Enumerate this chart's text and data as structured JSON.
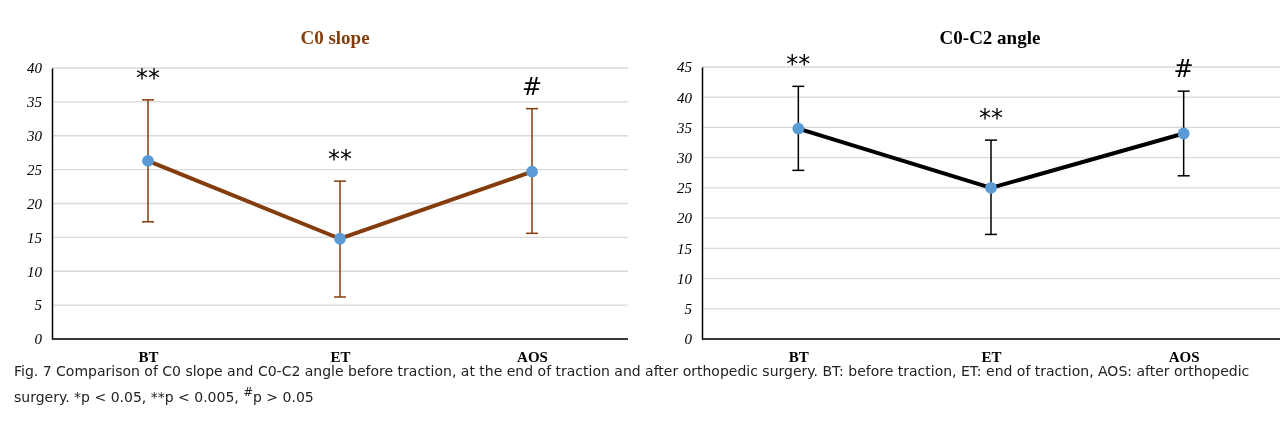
{
  "chart_data": [
    {
      "type": "line",
      "title": "C0 slope",
      "categories": [
        "BT",
        "ET",
        "AOS"
      ],
      "series": [
        {
          "color": "#843c0c",
          "values": [
            26.3,
            14.8,
            24.7
          ],
          "errors": [
            [
              17.3,
              35.3
            ],
            [
              6.2,
              23.3
            ],
            [
              15.6,
              34.0
            ]
          ]
        }
      ],
      "ylim": [
        0,
        40
      ],
      "yticks": [
        0,
        5,
        10,
        15,
        20,
        25,
        30,
        35,
        40
      ],
      "grid": "y",
      "marker": "circle",
      "line_style": "solid",
      "annotations": [
        "**",
        "**",
        "#",
        "Fig. 7  Comparison of C0 slope and C0-C2 angle before traction, at the end of traction and after orthopedic surgery. BT: before traction, ET: end of traction, AOS: after orthopedic surgery. *p < 0.05, **p < 0.005, $^{#}$p > 0.05"
      ]
    },
    {
      "type": "line",
      "title": "C0-C2 angle",
      "categories": [
        "BT",
        "ET",
        "AOS"
      ],
      "series": [
        {
          "color": "#000000",
          "values": [
            34.8,
            25.0,
            34.0
          ],
          "errors": [
            [
              27.9,
              41.8
            ],
            [
              17.3,
              32.9
            ],
            [
              27.0,
              41.0
            ]
          ]
        }
      ],
      "ylim": [
        0,
        45
      ],
      "yticks": [
        0,
        5,
        10,
        15,
        20,
        25,
        30,
        35,
        40,
        45
      ],
      "grid": "y",
      "marker": "circle",
      "line_style": "solid",
      "annotations": [
        "**",
        "**",
        "#"
      ]
    }
  ]
}
